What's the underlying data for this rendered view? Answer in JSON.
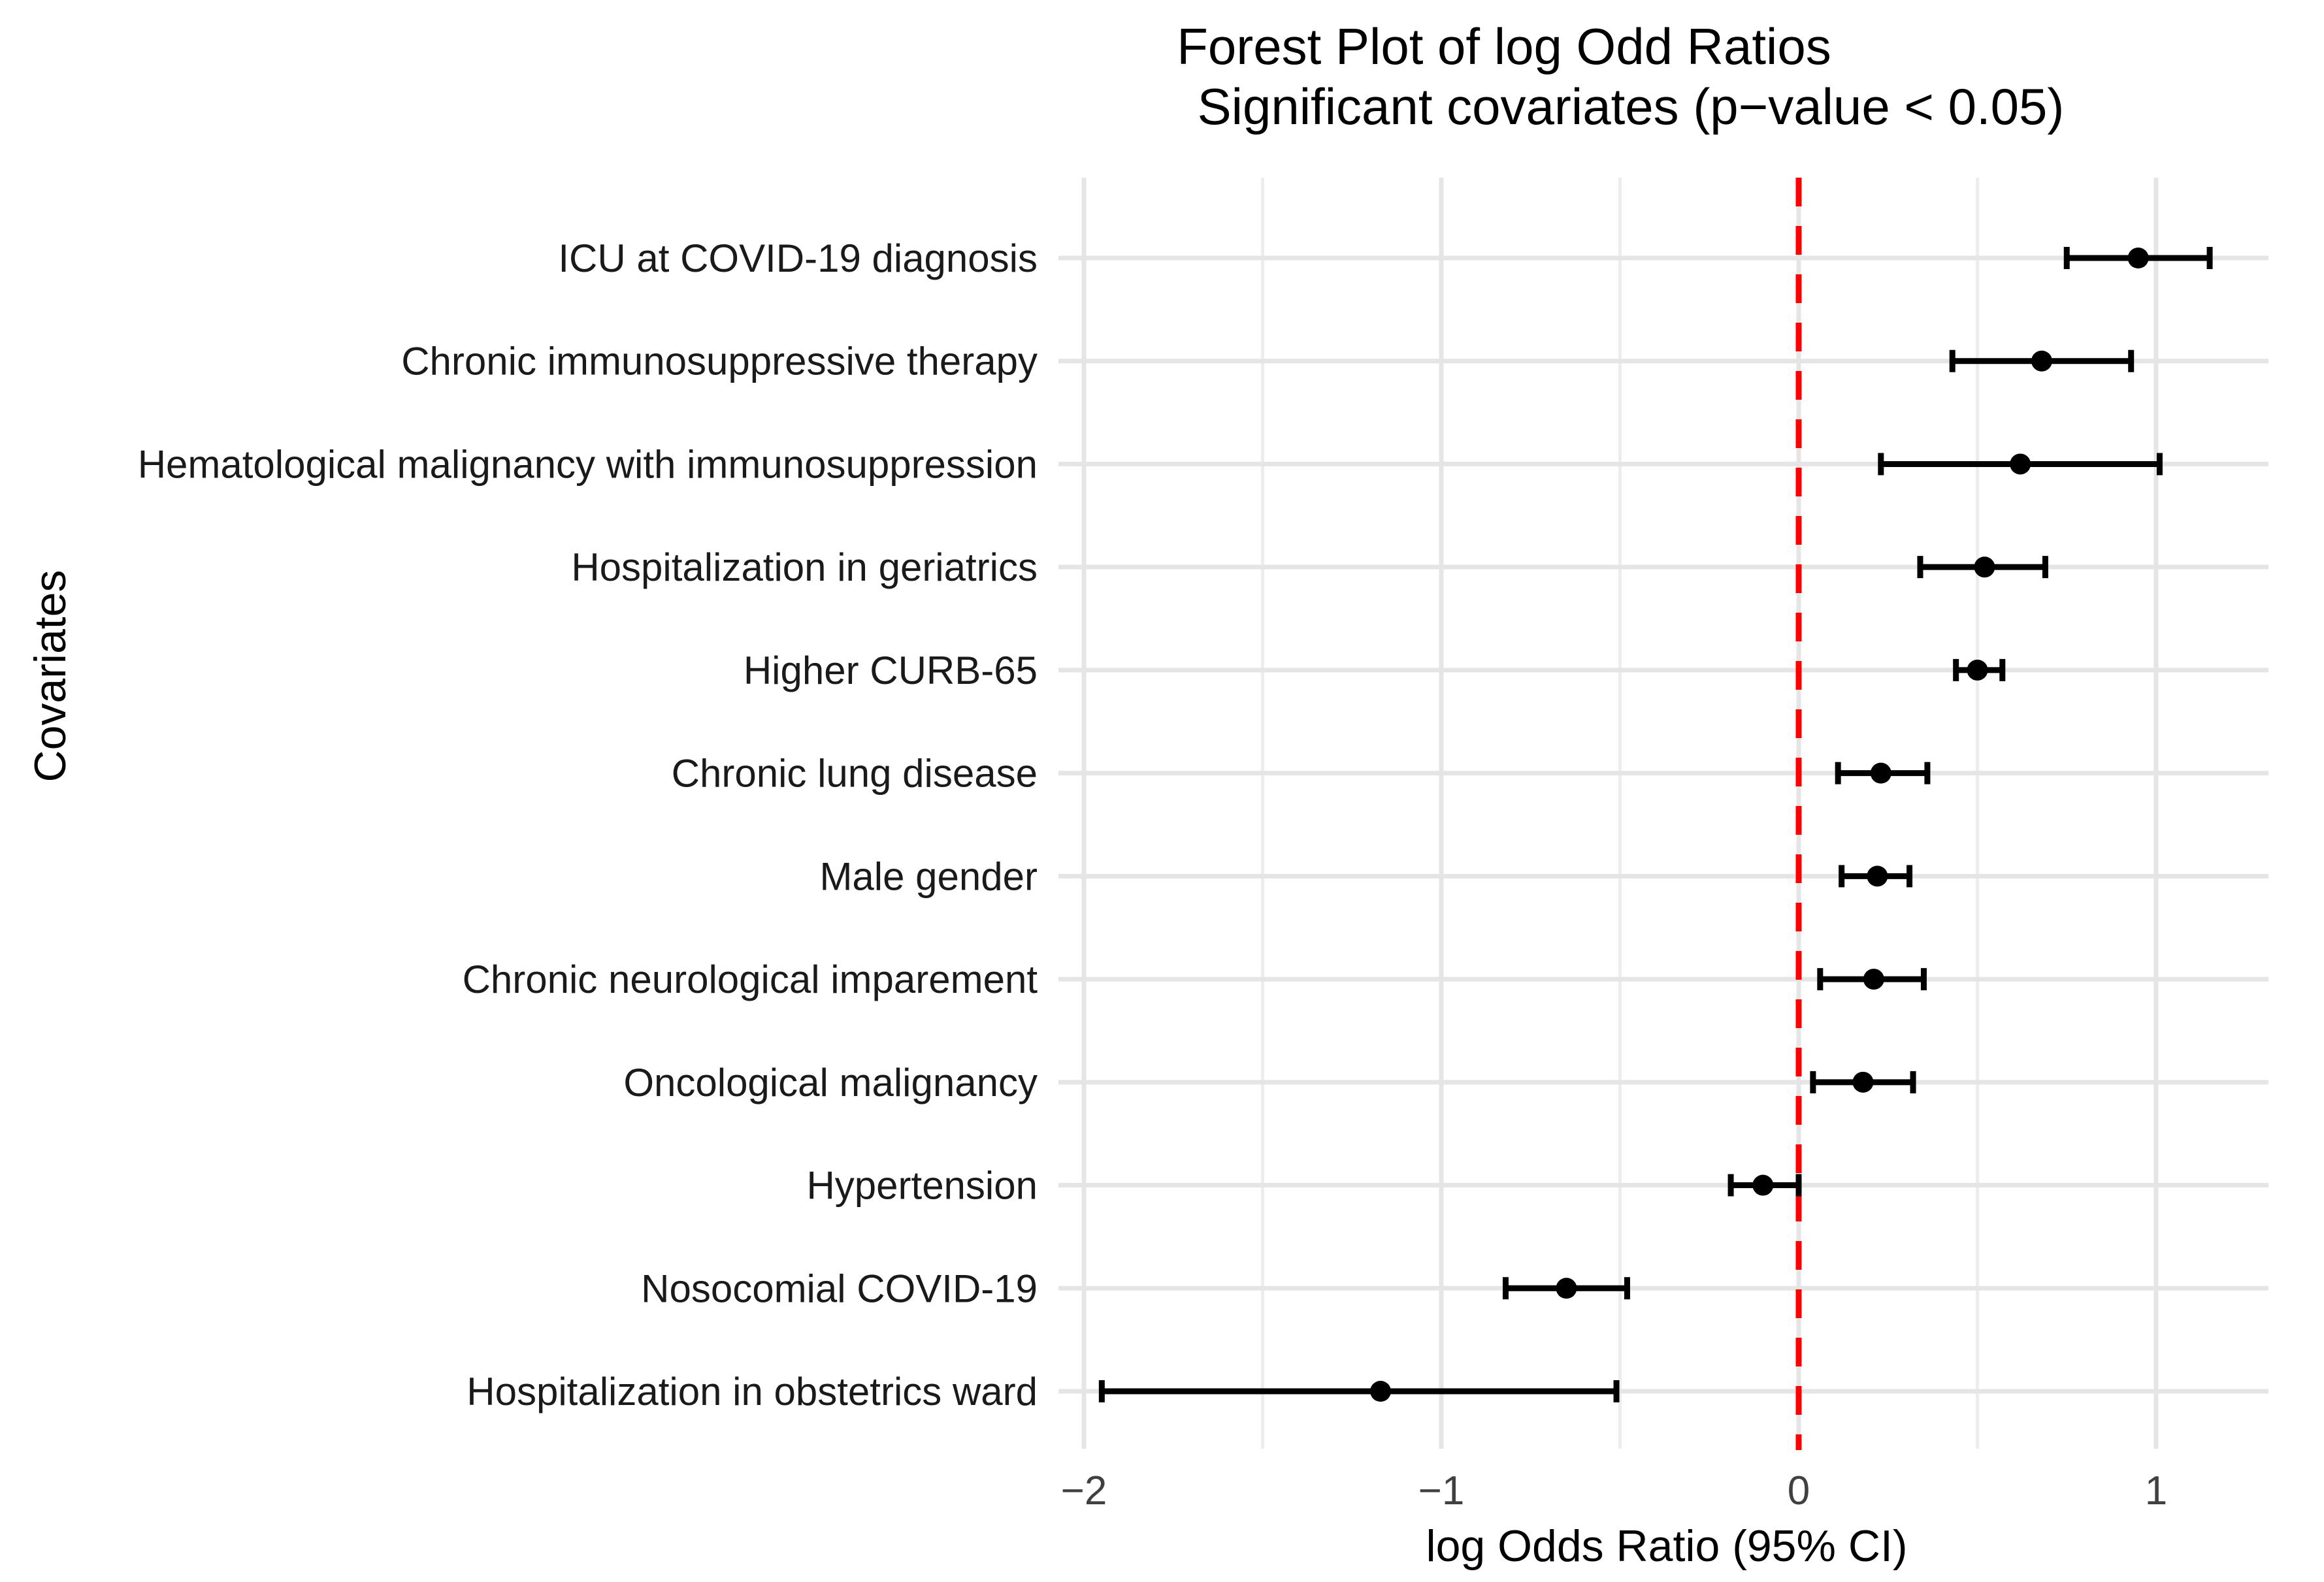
{
  "figure": {
    "title": "Forest Plot of log Odd Ratios",
    "subtitle": "Significant covariates (p−value < 0.05)"
  },
  "chart_data": {
    "type": "scatter",
    "variant": "forest-plot",
    "orientation": "horizontal",
    "title": "Forest Plot of log Odd Ratios",
    "subtitle": "Significant covariates (p−value < 0.05)",
    "xlabel": "log Odds Ratio (95% CI)",
    "ylabel": "Covariates",
    "xlim": [
      -2.07,
      1.34
    ],
    "x_ticks": [
      -2,
      -1,
      0,
      1
    ],
    "x_tick_labels": [
      "−2",
      "−1",
      "0",
      "1"
    ],
    "x_minor_gridlines": [
      -1.5,
      -0.5,
      0.5
    ],
    "grid": true,
    "legend": false,
    "background": "#ffffff",
    "gridline_color": "#e5e5e5",
    "minor_gridline_color": "#ededed",
    "point_color": "#000000",
    "error_bar_color": "#000000",
    "reference_line": {
      "x": 0,
      "style": "dashed",
      "color": "#ff0000"
    },
    "categories": [
      "ICU at COVID-19 diagnosis",
      "Chronic immunosuppressive therapy",
      "Hematological malignancy with immunosuppression",
      "Hospitalization in geriatrics",
      "Higher CURB-65",
      "Chronic lung disease",
      "Male gender",
      "Chronic neurological imparement",
      "Oncological malignancy",
      "Hypertension",
      "Nosocomial COVID-19",
      "Hospitalization in obstetrics ward"
    ],
    "series": [
      {
        "name": "log Odds Ratio (95% CI)",
        "estimates": [
          0.95,
          0.68,
          0.62,
          0.52,
          0.5,
          0.23,
          0.22,
          0.21,
          0.18,
          -0.1,
          -0.65,
          -1.17
        ],
        "ci_low": [
          0.75,
          0.43,
          0.23,
          0.34,
          0.44,
          0.11,
          0.12,
          0.06,
          0.04,
          -0.19,
          -0.82,
          -1.95
        ],
        "ci_high": [
          1.15,
          0.93,
          1.01,
          0.69,
          0.57,
          0.36,
          0.31,
          0.35,
          0.32,
          0.0,
          -0.48,
          -0.51
        ]
      }
    ]
  }
}
